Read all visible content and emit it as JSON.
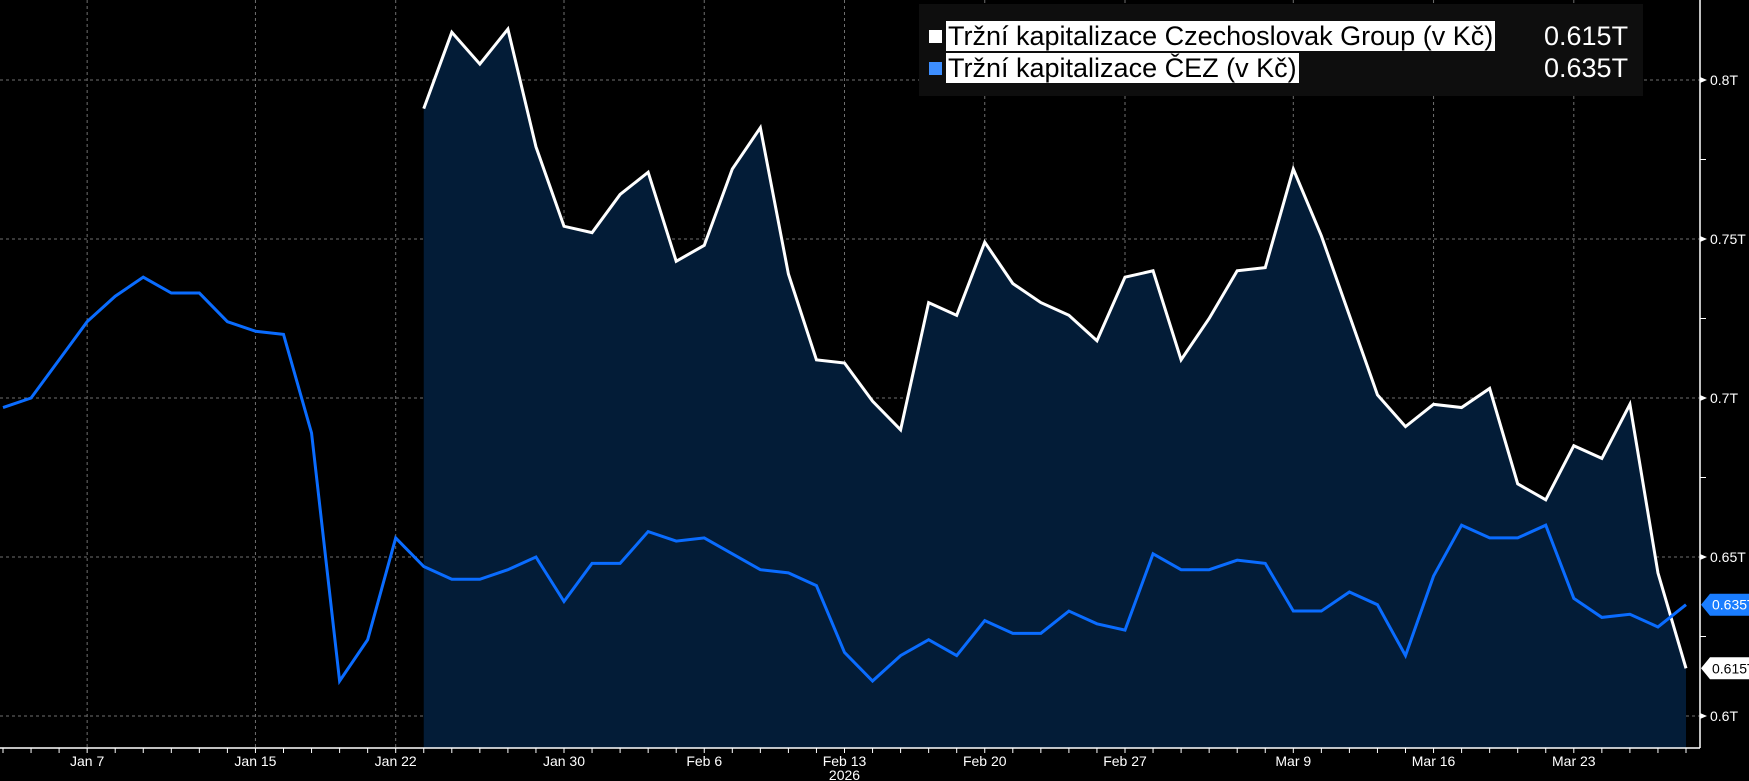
{
  "chart_data": {
    "type": "line",
    "title": "",
    "x_year_label": "2026",
    "x_tick_labels": [
      {
        "label": "Jan 7",
        "index": 3
      },
      {
        "label": "Jan 15",
        "index": 9
      },
      {
        "label": "Jan 22",
        "index": 14
      },
      {
        "label": "Jan 30",
        "index": 20
      },
      {
        "label": "Feb 6",
        "index": 25
      },
      {
        "label": "Feb 13",
        "index": 30
      },
      {
        "label": "Feb 20",
        "index": 35
      },
      {
        "label": "Feb 27",
        "index": 40
      },
      {
        "label": "Mar 9",
        "index": 46
      },
      {
        "label": "Mar 16",
        "index": 51
      },
      {
        "label": "Mar 23",
        "index": 56
      }
    ],
    "y_ticks": [
      {
        "label": "0.8T",
        "value": 0.8
      },
      {
        "label": "0.75T",
        "value": 0.75
      },
      {
        "label": "0.7T",
        "value": 0.7
      },
      {
        "label": "0.65T",
        "value": 0.65
      },
      {
        "label": "0.6T",
        "value": 0.6
      }
    ],
    "ylim": [
      0.58,
      0.82
    ],
    "y_unit": "T (trillion CZK)",
    "grid": true,
    "legend_position": "top-right",
    "series": [
      {
        "name": "Tržní kapitalizace Czechoslovak Group (v Kč)",
        "last_label": "0.615T",
        "color": "#ffffff",
        "filled": true,
        "start_index": 15,
        "values": [
          0.791,
          0.815,
          0.805,
          0.816,
          0.779,
          0.754,
          0.752,
          0.764,
          0.771,
          0.743,
          0.748,
          0.772,
          0.785,
          0.739,
          0.712,
          0.711,
          0.699,
          0.69,
          0.73,
          0.726,
          0.749,
          0.736,
          0.73,
          0.726,
          0.718,
          0.738,
          0.74,
          0.712,
          0.725,
          0.74,
          0.741,
          0.772,
          0.751,
          0.726,
          0.701,
          0.691,
          0.698,
          0.697,
          0.703,
          0.673,
          0.668,
          0.685,
          0.681,
          0.698,
          0.645,
          0.615
        ]
      },
      {
        "name": "Tržní kapitalizace ČEZ (v Kč)",
        "last_label": "0.635T",
        "color": "#0a6cff",
        "filled": false,
        "start_index": 0,
        "values": [
          0.697,
          0.7,
          0.712,
          0.724,
          0.732,
          0.738,
          0.733,
          0.733,
          0.724,
          0.721,
          0.72,
          0.689,
          0.611,
          0.624,
          0.656,
          0.647,
          0.643,
          0.643,
          0.646,
          0.65,
          0.636,
          0.648,
          0.648,
          0.658,
          0.655,
          0.656,
          0.651,
          0.646,
          0.645,
          0.641,
          0.62,
          0.611,
          0.619,
          0.624,
          0.619,
          0.63,
          0.626,
          0.626,
          0.633,
          0.629,
          0.627,
          0.651,
          0.646,
          0.646,
          0.649,
          0.648,
          0.633,
          0.633,
          0.639,
          0.635,
          0.619,
          0.644,
          0.66,
          0.656,
          0.656,
          0.66,
          0.637,
          0.631,
          0.632,
          0.628,
          0.635
        ]
      }
    ]
  },
  "colors": {
    "fill": "#031c37",
    "background": "#000000",
    "legend_bg": "#0e0e0e"
  }
}
